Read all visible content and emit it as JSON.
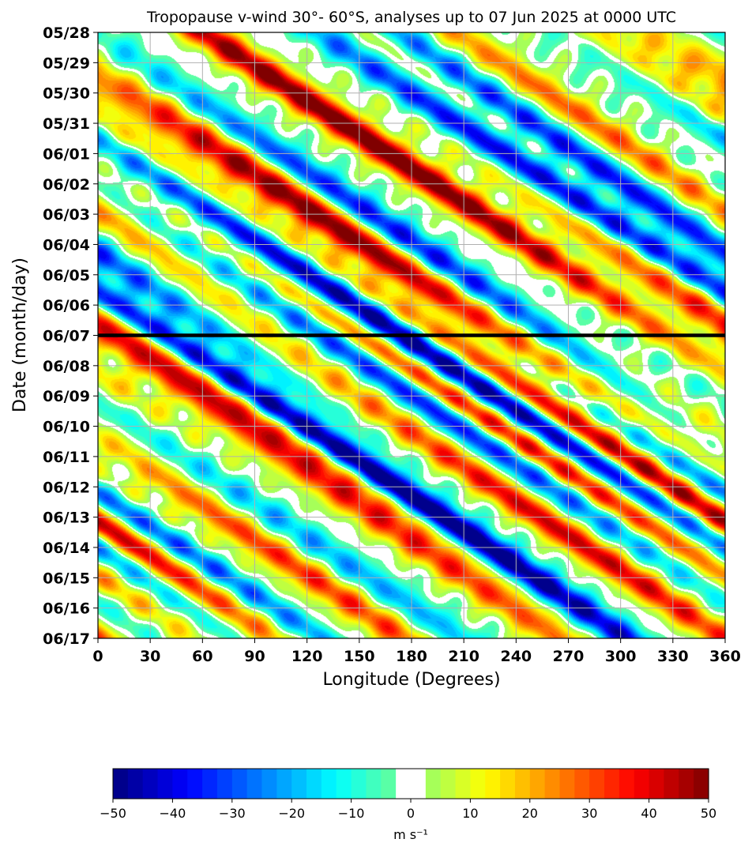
{
  "chart_data": {
    "type": "heatmap",
    "title": "Tropopause v-wind 30°- 60°S, analyses up to 07 Jun 2025 at 0000 UTC",
    "xlabel": "Longitude (Degrees)",
    "ylabel": "Date (month/day)",
    "xlim": [
      0,
      360
    ],
    "x_ticks": [
      0,
      30,
      60,
      90,
      120,
      150,
      180,
      210,
      240,
      270,
      300,
      330,
      360
    ],
    "x_tick_labels": [
      "0",
      "30",
      "60",
      "90",
      "120",
      "150",
      "180",
      "210",
      "240",
      "270",
      "300",
      "330",
      "360"
    ],
    "y_tick_labels": [
      "05/28",
      "05/29",
      "05/30",
      "05/31",
      "06/01",
      "06/02",
      "06/03",
      "06/04",
      "06/05",
      "06/06",
      "06/07",
      "06/08",
      "06/09",
      "06/10",
      "06/11",
      "06/12",
      "06/13",
      "06/14",
      "06/15",
      "06/16",
      "06/17"
    ],
    "analysis_line_date": "06/07",
    "grid": true,
    "colorbar": {
      "label": "m s⁻¹",
      "min": -50,
      "max": 50,
      "step": 2.5,
      "ticks": [
        -50,
        -40,
        -30,
        -20,
        -10,
        0,
        10,
        20,
        30,
        40,
        50
      ],
      "tick_labels": [
        "−50",
        "−40",
        "−30",
        "−20",
        "−10",
        "0",
        "10",
        "20",
        "30",
        "40",
        "50"
      ],
      "white_band": [
        -2.5,
        2.5
      ],
      "colormap": "jet"
    },
    "wave_bands": [
      {
        "lon0": 0,
        "day0": 1.0,
        "amplitude": 30,
        "sign": -1
      },
      {
        "lon0": 10,
        "day0": 1.6,
        "amplitude": 34,
        "sign": 1
      },
      {
        "lon0": 20,
        "day0": 2.5,
        "amplitude": 22,
        "sign": -1
      },
      {
        "lon0": 0,
        "day0": 2.9,
        "amplitude": 20,
        "sign": 1
      },
      {
        "lon0": 60,
        "day0": 0.0,
        "amplitude": 32,
        "sign": 1
      },
      {
        "lon0": 170,
        "day0": 0.3,
        "amplitude": 28,
        "sign": 1
      },
      {
        "lon0": 185,
        "day0": 0.6,
        "amplitude": 30,
        "sign": -1
      },
      {
        "lon0": 95,
        "day0": 4.5,
        "amplitude": 28,
        "sign": 1
      },
      {
        "lon0": 135,
        "day0": 6.5,
        "amplitude": 42,
        "sign": 1
      },
      {
        "lon0": 105,
        "day0": 7.4,
        "amplitude": 38,
        "sign": -1
      },
      {
        "lon0": 175,
        "day0": 6.7,
        "amplitude": 40,
        "sign": -1
      },
      {
        "lon0": 215,
        "day0": 5.8,
        "amplitude": 42,
        "sign": 1
      },
      {
        "lon0": 245,
        "day0": 4.5,
        "amplitude": 44,
        "sign": -1
      },
      {
        "lon0": 290,
        "day0": 3.2,
        "amplitude": 30,
        "sign": 1
      },
      {
        "lon0": 315,
        "day0": 5.6,
        "amplitude": 34,
        "sign": -1
      },
      {
        "lon0": 345,
        "day0": 1.2,
        "amplitude": 40,
        "sign": 1
      },
      {
        "lon0": 330,
        "day0": 0.3,
        "amplitude": 30,
        "sign": -1
      },
      {
        "lon0": 20,
        "day0": 10.4,
        "amplitude": 32,
        "sign": 1
      },
      {
        "lon0": 60,
        "day0": 11.3,
        "amplitude": 34,
        "sign": 1
      },
      {
        "lon0": 90,
        "day0": 12.0,
        "amplitude": 36,
        "sign": -1
      },
      {
        "lon0": 195,
        "day0": 12.5,
        "amplitude": 40,
        "sign": -1
      },
      {
        "lon0": 245,
        "day0": 13.6,
        "amplitude": 44,
        "sign": 1
      },
      {
        "lon0": 275,
        "day0": 13.7,
        "amplitude": 40,
        "sign": -1
      },
      {
        "lon0": 310,
        "day0": 14.2,
        "amplitude": 36,
        "sign": 1
      },
      {
        "lon0": 20,
        "day0": 15.5,
        "amplitude": 30,
        "sign": 1
      },
      {
        "lon0": 60,
        "day0": 17.2,
        "amplitude": 30,
        "sign": -1
      },
      {
        "lon0": 115,
        "day0": 17.7,
        "amplitude": 36,
        "sign": 1
      },
      {
        "lon0": 145,
        "day0": 17.6,
        "amplitude": 22,
        "sign": -1
      },
      {
        "lon0": 200,
        "day0": 17.6,
        "amplitude": 30,
        "sign": 1
      },
      {
        "lon0": 240,
        "day0": 17.6,
        "amplitude": 44,
        "sign": -1
      },
      {
        "lon0": 275,
        "day0": 16.8,
        "amplitude": 44,
        "sign": 1
      },
      {
        "lon0": 345,
        "day0": 14.6,
        "amplitude": 28,
        "sign": -1
      },
      {
        "lon0": 350,
        "day0": 16.0,
        "amplitude": 22,
        "sign": 1
      }
    ]
  }
}
